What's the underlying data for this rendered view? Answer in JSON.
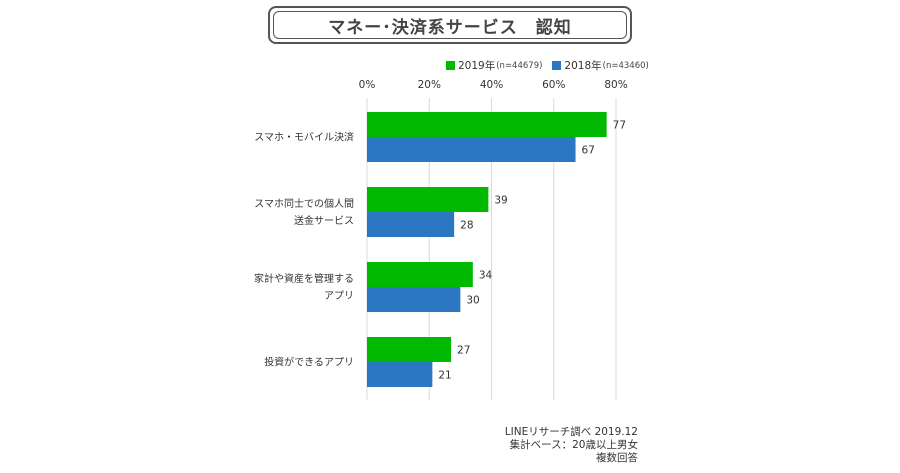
{
  "title": "マネー･決済系サービス　認知",
  "legend": [
    {
      "label": "2019年",
      "note": "(n=44679)",
      "color": "#00b900"
    },
    {
      "label": "2018年",
      "note": "(n=43460)",
      "color": "#2b77c2"
    }
  ],
  "chart_data": {
    "type": "bar",
    "orientation": "horizontal",
    "categories": [
      [
        "スマホ・モバイル決済"
      ],
      [
        "スマホ同士での個人間",
        "送金サービス"
      ],
      [
        "家計や資産を管理する",
        "アプリ"
      ],
      [
        "投資ができるアプリ"
      ]
    ],
    "series": [
      {
        "name": "2019年",
        "values": [
          77,
          39,
          34,
          27
        ],
        "color": "#00b900"
      },
      {
        "name": "2018年",
        "values": [
          67,
          28,
          30,
          21
        ],
        "color": "#2b77c2"
      }
    ],
    "xlim": [
      0,
      80
    ],
    "ticks": [
      "0%",
      "20%",
      "40%",
      "60%",
      "80%"
    ],
    "tick_values": [
      0,
      20,
      40,
      60,
      80
    ],
    "grid": true,
    "legend_position": "top-right"
  },
  "source": {
    "line1": "LINEリサーチ調べ 2019.12",
    "line2": "集計ベース：20歳以上男女",
    "line3": "複数回答"
  }
}
